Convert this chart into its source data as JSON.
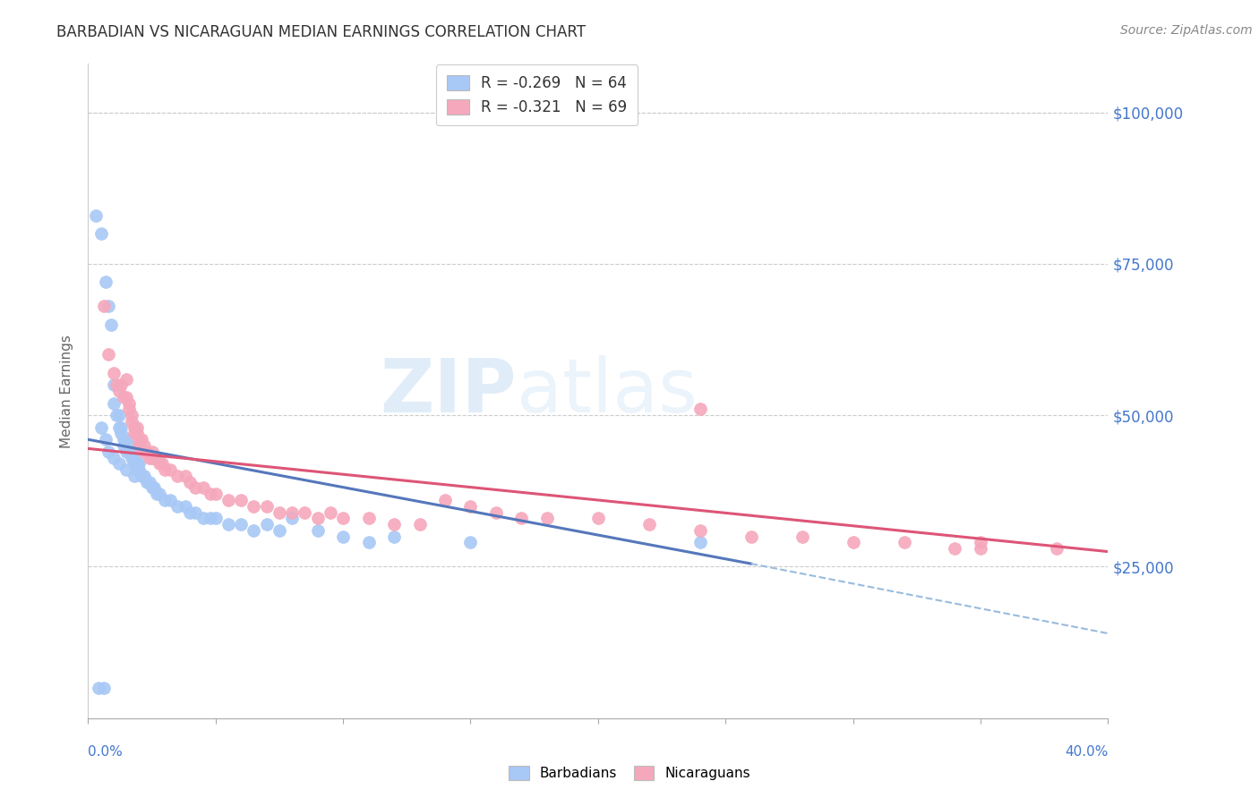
{
  "title": "BARBADIAN VS NICARAGUAN MEDIAN EARNINGS CORRELATION CHART",
  "source": "Source: ZipAtlas.com",
  "ylabel": "Median Earnings",
  "yticks": [
    0,
    25000,
    50000,
    75000,
    100000
  ],
  "ytick_labels": [
    "",
    "$25,000",
    "$50,000",
    "$75,000",
    "$100,000"
  ],
  "xlim": [
    0.0,
    0.4
  ],
  "ylim": [
    0,
    108000
  ],
  "watermark_zip": "ZIP",
  "watermark_atlas": "atlas",
  "barbadian_R": "-0.269",
  "barbadian_N": "64",
  "nicaraguan_R": "-0.321",
  "nicaraguan_N": "69",
  "barbadian_color": "#a8c8f5",
  "nicaraguan_color": "#f5a8bc",
  "trendline_blue": "#5577bb",
  "trendline_pink": "#dd5577",
  "trendline_dashed_color": "#99bbdd",
  "barbadian_points_x": [
    0.003,
    0.005,
    0.007,
    0.008,
    0.009,
    0.01,
    0.01,
    0.011,
    0.012,
    0.012,
    0.013,
    0.013,
    0.014,
    0.014,
    0.015,
    0.015,
    0.016,
    0.016,
    0.017,
    0.017,
    0.018,
    0.018,
    0.019,
    0.019,
    0.02,
    0.02,
    0.021,
    0.022,
    0.023,
    0.024,
    0.025,
    0.026,
    0.027,
    0.028,
    0.03,
    0.032,
    0.035,
    0.038,
    0.04,
    0.042,
    0.045,
    0.048,
    0.05,
    0.055,
    0.06,
    0.065,
    0.07,
    0.075,
    0.08,
    0.09,
    0.1,
    0.11,
    0.12,
    0.15,
    0.24,
    0.004,
    0.006,
    0.005,
    0.007,
    0.008,
    0.01,
    0.012,
    0.015,
    0.018
  ],
  "barbadian_points_y": [
    83000,
    80000,
    72000,
    68000,
    65000,
    55000,
    52000,
    50000,
    50000,
    48000,
    48000,
    47000,
    46000,
    45000,
    44000,
    46000,
    45000,
    44000,
    44000,
    43000,
    43000,
    42000,
    42000,
    41000,
    41000,
    42000,
    40000,
    40000,
    39000,
    39000,
    38000,
    38000,
    37000,
    37000,
    36000,
    36000,
    35000,
    35000,
    34000,
    34000,
    33000,
    33000,
    33000,
    32000,
    32000,
    31000,
    32000,
    31000,
    33000,
    31000,
    30000,
    29000,
    30000,
    29000,
    29000,
    5000,
    5000,
    48000,
    46000,
    44000,
    43000,
    42000,
    41000,
    40000
  ],
  "nicaraguan_points_x": [
    0.006,
    0.008,
    0.01,
    0.011,
    0.012,
    0.013,
    0.014,
    0.015,
    0.015,
    0.016,
    0.016,
    0.017,
    0.017,
    0.018,
    0.018,
    0.019,
    0.019,
    0.02,
    0.02,
    0.021,
    0.022,
    0.022,
    0.023,
    0.024,
    0.025,
    0.025,
    0.026,
    0.027,
    0.028,
    0.029,
    0.03,
    0.032,
    0.035,
    0.038,
    0.04,
    0.042,
    0.045,
    0.048,
    0.05,
    0.055,
    0.06,
    0.065,
    0.07,
    0.075,
    0.08,
    0.085,
    0.09,
    0.095,
    0.1,
    0.11,
    0.12,
    0.13,
    0.14,
    0.15,
    0.16,
    0.17,
    0.18,
    0.2,
    0.22,
    0.24,
    0.26,
    0.28,
    0.3,
    0.32,
    0.34,
    0.35,
    0.38,
    0.24,
    0.35
  ],
  "nicaraguan_points_y": [
    68000,
    60000,
    57000,
    55000,
    54000,
    55000,
    53000,
    56000,
    53000,
    51000,
    52000,
    50000,
    49000,
    48000,
    47000,
    48000,
    47000,
    46000,
    45000,
    46000,
    45000,
    44000,
    44000,
    43000,
    43000,
    44000,
    43000,
    43000,
    42000,
    42000,
    41000,
    41000,
    40000,
    40000,
    39000,
    38000,
    38000,
    37000,
    37000,
    36000,
    36000,
    35000,
    35000,
    34000,
    34000,
    34000,
    33000,
    34000,
    33000,
    33000,
    32000,
    32000,
    36000,
    35000,
    34000,
    33000,
    33000,
    33000,
    32000,
    31000,
    30000,
    30000,
    29000,
    29000,
    28000,
    29000,
    28000,
    51000,
    28000
  ],
  "blue_trend_x0": 0.0,
  "blue_trend_y0": 46000,
  "blue_trend_x1": 0.26,
  "blue_trend_y1": 25500,
  "pink_trend_x0": 0.0,
  "pink_trend_y0": 44500,
  "pink_trend_x1": 0.4,
  "pink_trend_y1": 27500,
  "dashed_trend_x0": 0.26,
  "dashed_trend_y0": 25500,
  "dashed_trend_x1": 0.4,
  "dashed_trend_y1": 14000,
  "xtick_positions": [
    0.0,
    0.05,
    0.1,
    0.15,
    0.2,
    0.25,
    0.3,
    0.35,
    0.4
  ]
}
